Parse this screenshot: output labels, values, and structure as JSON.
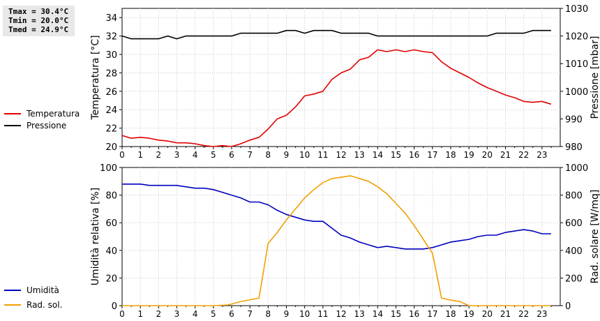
{
  "stats": {
    "tmax": "Tmax = 30.4°C",
    "tmin": "Tmin = 20.0°C",
    "tmed": "Tmed = 24.9°C"
  },
  "chart_data": [
    {
      "type": "line",
      "xlim": [
        0,
        24
      ],
      "xticks": [
        "0",
        "1",
        "2",
        "3",
        "4",
        "5",
        "6",
        "7",
        "8",
        "9",
        "10",
        "11",
        "12",
        "13",
        "14",
        "15",
        "16",
        "17",
        "18",
        "19",
        "20",
        "21",
        "22",
        "23"
      ],
      "ylabel_left": "Temperatura [°C]",
      "ylim_left": [
        20,
        35
      ],
      "yticks_left": [
        20,
        22,
        24,
        26,
        28,
        30,
        32,
        34
      ],
      "ylabel_right": "Pressione [mbar]",
      "ylim_right": [
        980,
        1030
      ],
      "yticks_right": [
        980,
        990,
        1000,
        1010,
        1020,
        1030
      ],
      "grid": true,
      "legend_position": "left",
      "series": [
        {
          "name": "Temperatura",
          "color": "#e00000",
          "axis": "left",
          "x": [
            0,
            0.5,
            1,
            1.5,
            2,
            2.5,
            3,
            3.5,
            4,
            4.5,
            5,
            5.5,
            6,
            6.5,
            7,
            7.5,
            8,
            8.5,
            9,
            9.5,
            10,
            10.5,
            11,
            11.5,
            12,
            12.5,
            13,
            13.5,
            14,
            14.5,
            15,
            15.5,
            16,
            16.5,
            17,
            17.5,
            18,
            18.5,
            19,
            19.5,
            20,
            20.5,
            21,
            21.5,
            22,
            22.5,
            23,
            23.5
          ],
          "y": [
            21.2,
            20.9,
            21.0,
            20.9,
            20.7,
            20.6,
            20.4,
            20.4,
            20.3,
            20.1,
            20.0,
            20.1,
            20.0,
            20.3,
            20.7,
            21.0,
            21.9,
            23.0,
            23.4,
            24.3,
            25.5,
            25.7,
            26.0,
            27.3,
            28.0,
            28.4,
            29.4,
            29.7,
            30.5,
            30.3,
            30.5,
            30.3,
            30.5,
            30.3,
            30.2,
            29.2,
            28.5,
            28.0,
            27.5,
            26.9,
            26.4,
            26.0,
            25.6,
            25.3,
            24.9,
            24.8,
            24.9,
            24.6
          ]
        },
        {
          "name": "Pressione",
          "color": "#000000",
          "axis": "right",
          "x": [
            0,
            0.5,
            1,
            1.5,
            2,
            2.5,
            3,
            3.5,
            4,
            4.5,
            5,
            5.5,
            6,
            6.5,
            7,
            7.5,
            8,
            8.5,
            9,
            9.5,
            10,
            10.5,
            11,
            11.5,
            12,
            12.5,
            13,
            13.5,
            14,
            14.5,
            15,
            15.5,
            16,
            16.5,
            17,
            17.5,
            18,
            18.5,
            19,
            19.5,
            20,
            20.5,
            21,
            21.5,
            22,
            22.5,
            23,
            23.5
          ],
          "y": [
            1020,
            1019,
            1019,
            1019,
            1019,
            1020,
            1019,
            1020,
            1020,
            1020,
            1020,
            1020,
            1020,
            1021,
            1021,
            1021,
            1021,
            1021,
            1022,
            1022,
            1021,
            1022,
            1022,
            1022,
            1021,
            1021,
            1021,
            1021,
            1020,
            1020,
            1020,
            1020,
            1020,
            1020,
            1020,
            1020,
            1020,
            1020,
            1020,
            1020,
            1020,
            1021,
            1021,
            1021,
            1021,
            1022,
            1022,
            1022
          ]
        }
      ]
    },
    {
      "type": "line",
      "xlim": [
        0,
        24
      ],
      "xticks": [
        "0",
        "1",
        "2",
        "3",
        "4",
        "5",
        "6",
        "7",
        "8",
        "9",
        "10",
        "11",
        "12",
        "13",
        "14",
        "15",
        "16",
        "17",
        "18",
        "19",
        "20",
        "21",
        "22",
        "23"
      ],
      "ylabel_left": "Umidità relativa [%]",
      "ylim_left": [
        0,
        100
      ],
      "yticks_left": [
        0,
        20,
        40,
        60,
        80,
        100
      ],
      "ylabel_right": "Rad. solare [W/mq]",
      "ylim_right": [
        0,
        1000
      ],
      "yticks_right": [
        0,
        200,
        400,
        600,
        800,
        1000
      ],
      "grid": true,
      "legend_position": "left",
      "series": [
        {
          "name": "Umidità",
          "color": "#0000c0",
          "axis": "left",
          "x": [
            0,
            0.5,
            1,
            1.5,
            2,
            2.5,
            3,
            3.5,
            4,
            4.5,
            5,
            5.5,
            6,
            6.5,
            7,
            7.5,
            8,
            8.5,
            9,
            9.5,
            10,
            10.5,
            11,
            11.5,
            12,
            12.5,
            13,
            13.5,
            14,
            14.5,
            15,
            15.5,
            16,
            16.5,
            17,
            17.5,
            18,
            18.5,
            19,
            19.5,
            20,
            20.5,
            21,
            21.5,
            22,
            22.5,
            23,
            23.5
          ],
          "y": [
            88,
            88,
            88,
            87,
            87,
            87,
            87,
            86,
            85,
            85,
            84,
            82,
            80,
            78,
            75,
            75,
            73,
            69,
            66,
            64,
            62,
            61,
            61,
            56,
            51,
            49,
            46,
            44,
            42,
            43,
            42,
            41,
            41,
            41,
            42,
            44,
            46,
            47,
            48,
            50,
            51,
            51,
            53,
            54,
            55,
            54,
            52,
            52
          ]
        },
        {
          "name": "Rad. sol.",
          "color": "#f0a000",
          "axis": "right",
          "x": [
            0,
            1,
            2,
            3,
            4,
            5,
            5.8,
            6.5,
            7.5,
            8,
            8.5,
            9,
            9.5,
            10,
            10.5,
            11,
            11.5,
            12,
            12.5,
            13,
            13.5,
            14,
            14.5,
            15,
            15.5,
            16,
            16.5,
            17,
            17.5,
            18,
            18.5,
            19,
            20,
            21,
            22,
            23,
            23.5
          ],
          "y": [
            0,
            0,
            0,
            0,
            0,
            0,
            5,
            30,
            55,
            450,
            530,
            620,
            700,
            780,
            840,
            890,
            920,
            930,
            940,
            920,
            900,
            860,
            810,
            740,
            670,
            580,
            480,
            380,
            55,
            40,
            30,
            0,
            0,
            0,
            0,
            0,
            0
          ]
        }
      ]
    }
  ]
}
